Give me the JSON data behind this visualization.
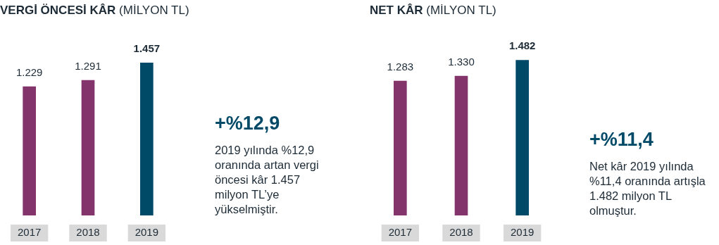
{
  "chart_data": [
    {
      "type": "bar",
      "title": "VERGİ ÖNCESİ KÂR",
      "subtitle": "(MİLYON TL)",
      "categories": [
        "2017",
        "2018",
        "2019"
      ],
      "values": [
        1229,
        1291,
        1457
      ],
      "colors": [
        "#83356b",
        "#83356b",
        "#004a68"
      ],
      "value_labels": [
        "1.229",
        "1.291",
        "1.457"
      ]
    },
    {
      "type": "other",
      "title": "+%12,9",
      "annotations": [
        "2019 yılında %12,9 oranında artan vergi öncesi kâr 1.457 milyon TL’ye yükselmiştir."
      ]
    },
    {
      "type": "bar",
      "title": "NET KÂR",
      "subtitle": "(MİLYON TL)",
      "categories": [
        "2017",
        "2018",
        "2019"
      ],
      "values": [
        1283,
        1330,
        1482
      ],
      "colors": [
        "#83356b",
        "#83356b",
        "#004a68"
      ],
      "value_labels": [
        "1.283",
        "1.330",
        "1.482"
      ]
    },
    {
      "type": "other",
      "title": "+%11,4",
      "annotations": [
        "Net kâr 2019 yılında %11,4 oranında artışla 1.482 milyon TL olmuştur."
      ]
    }
  ]
}
